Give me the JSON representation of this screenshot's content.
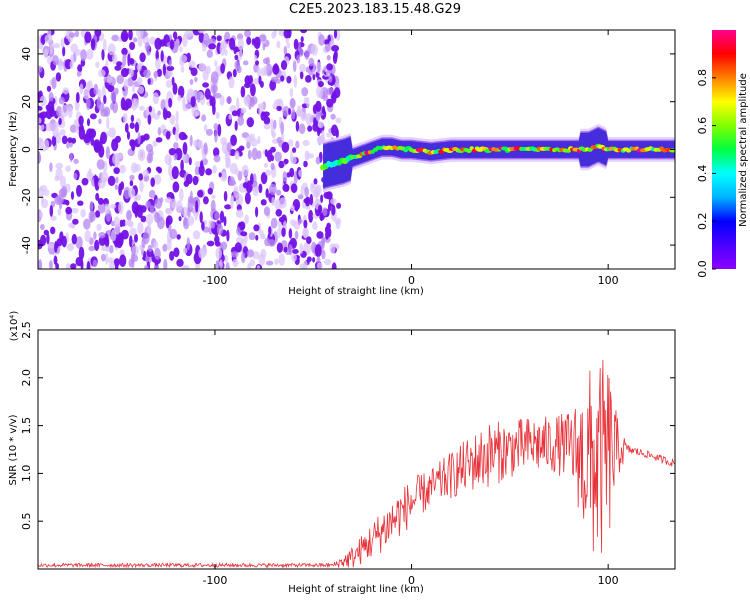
{
  "title": "C2E5.2023.183.15.48.G29",
  "colors": {
    "spectrogram_low": "#7b1fe0",
    "snr_line": "#e8333a",
    "axis": "#000000"
  },
  "chart_data": [
    {
      "type": "heatmap",
      "xlabel": "Height of straight line (km)",
      "ylabel": "Frequency (Hz)",
      "xlim": [
        -190,
        134
      ],
      "ylim": [
        -50,
        50
      ],
      "x_ticks": [
        -100,
        0,
        100
      ],
      "x_tick_labels": [
        "-100",
        "0",
        "100"
      ],
      "y_ticks": [
        -40,
        -20,
        0,
        20,
        40
      ],
      "y_tick_labels": [
        "-40",
        "-20",
        "0",
        "20",
        "40"
      ],
      "colorbar": {
        "label": "Normalized spectral amplitude",
        "range": [
          0,
          1
        ],
        "ticks": [
          0.0,
          0.2,
          0.4,
          0.6,
          0.8
        ],
        "tick_labels": [
          "0.0",
          "0.2",
          "0.4",
          "0.6",
          "0.8"
        ],
        "colormap": [
          "#8b00ff",
          "#4b00ff",
          "#0000ff",
          "#00b4ff",
          "#00ffff",
          "#00ff40",
          "#80ff00",
          "#ffff00",
          "#ff8000",
          "#ff0000",
          "#ff0090"
        ]
      },
      "noise_region_x": [
        -190,
        -40
      ],
      "ridge": {
        "x": [
          -45,
          -35,
          -25,
          -15,
          -10,
          -5,
          0,
          10,
          20,
          40,
          60,
          80,
          90,
          95,
          100,
          134
        ],
        "frequency": [
          -7,
          -5,
          -2,
          1,
          1,
          0,
          0,
          -1,
          0,
          0,
          0,
          0,
          0,
          2,
          0,
          0
        ]
      }
    },
    {
      "type": "line",
      "xlabel": "Height of straight line (km)",
      "ylabel": "SNR (10 * v/v)",
      "y_multiplier_label": "(x10⁴)",
      "xlim": [
        -190,
        134
      ],
      "ylim": [
        0,
        2.5
      ],
      "x_ticks": [
        -100,
        0,
        100
      ],
      "x_tick_labels": [
        "-100",
        "0",
        "100"
      ],
      "y_ticks": [
        0.5,
        1.0,
        1.5,
        2.0,
        2.5
      ],
      "y_tick_labels": [
        "0.5",
        "1.0",
        "1.5",
        "2.0",
        "2.5"
      ],
      "envelope": {
        "x": [
          -190,
          -40,
          -30,
          -20,
          -10,
          0,
          10,
          20,
          30,
          40,
          50,
          60,
          70,
          80,
          85,
          90,
          95,
          100,
          105,
          110,
          120,
          134
        ],
        "mean": [
          0.04,
          0.04,
          0.12,
          0.3,
          0.5,
          0.7,
          0.85,
          0.98,
          1.1,
          1.2,
          1.25,
          1.3,
          1.3,
          1.3,
          1.2,
          1.1,
          1.1,
          1.2,
          1.25,
          1.25,
          1.2,
          1.1
        ],
        "spread": [
          0.02,
          0.02,
          0.12,
          0.2,
          0.25,
          0.25,
          0.2,
          0.25,
          0.3,
          0.35,
          0.3,
          0.3,
          0.3,
          0.35,
          0.6,
          1.0,
          1.1,
          1.0,
          0.3,
          0.05,
          0.04,
          0.04
        ]
      }
    }
  ]
}
